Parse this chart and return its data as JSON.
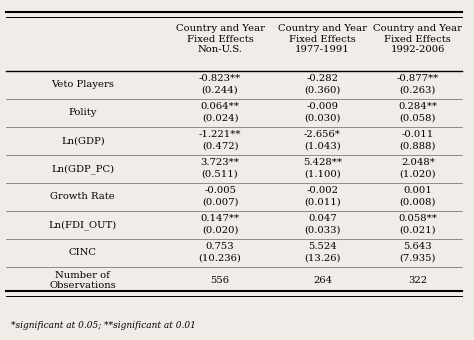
{
  "col_headers": [
    "Country and Year\nFixed Effects\nNon-U.S.",
    "Country and Year\nFixed Effects\n1977-1991",
    "Country and Year\nFixed Effects\n1992-2006"
  ],
  "rows": [
    {
      "label": "Veto Players",
      "values": [
        "-0.823**",
        "-0.282",
        "-0.877**"
      ],
      "se": [
        "(0.244)",
        "(0.360)",
        "(0.263)"
      ]
    },
    {
      "label": "Polity",
      "values": [
        "0.064**",
        "-0.009",
        "0.284**"
      ],
      "se": [
        "(0.024)",
        "(0.030)",
        "(0.058)"
      ]
    },
    {
      "label": "Ln(GDP)",
      "values": [
        "-1.221**",
        "-2.656*",
        "-0.011"
      ],
      "se": [
        "(0.472)",
        "(1.043)",
        "(0.888)"
      ]
    },
    {
      "label": "Ln(GDP_PC)",
      "values": [
        "3.723**",
        "5.428**",
        "2.048*"
      ],
      "se": [
        "(0.511)",
        "(1.100)",
        "(1.020)"
      ]
    },
    {
      "label": "Growth Rate",
      "values": [
        "-0.005",
        "-0.002",
        "0.001"
      ],
      "se": [
        "(0.007)",
        "(0.011)",
        "(0.008)"
      ]
    },
    {
      "label": "Ln(FDI_OUT)",
      "values": [
        "0.147**",
        "0.047",
        "0.058**"
      ],
      "se": [
        "(0.020)",
        "(0.033)",
        "(0.021)"
      ]
    },
    {
      "label": "CINC",
      "values": [
        "0.753",
        "5.524",
        "5.643"
      ],
      "se": [
        "(10.236)",
        "(13.26)",
        "(7.935)"
      ]
    },
    {
      "label": "Number of\nObservations",
      "values": [
        "556",
        "264",
        "322"
      ],
      "se": [
        "",
        "",
        ""
      ]
    }
  ],
  "footnote": "*significant at 0.05; **significant at 0.01",
  "bg_color": "#f0ede8",
  "font_size": 7.2,
  "header_font_size": 7.2
}
